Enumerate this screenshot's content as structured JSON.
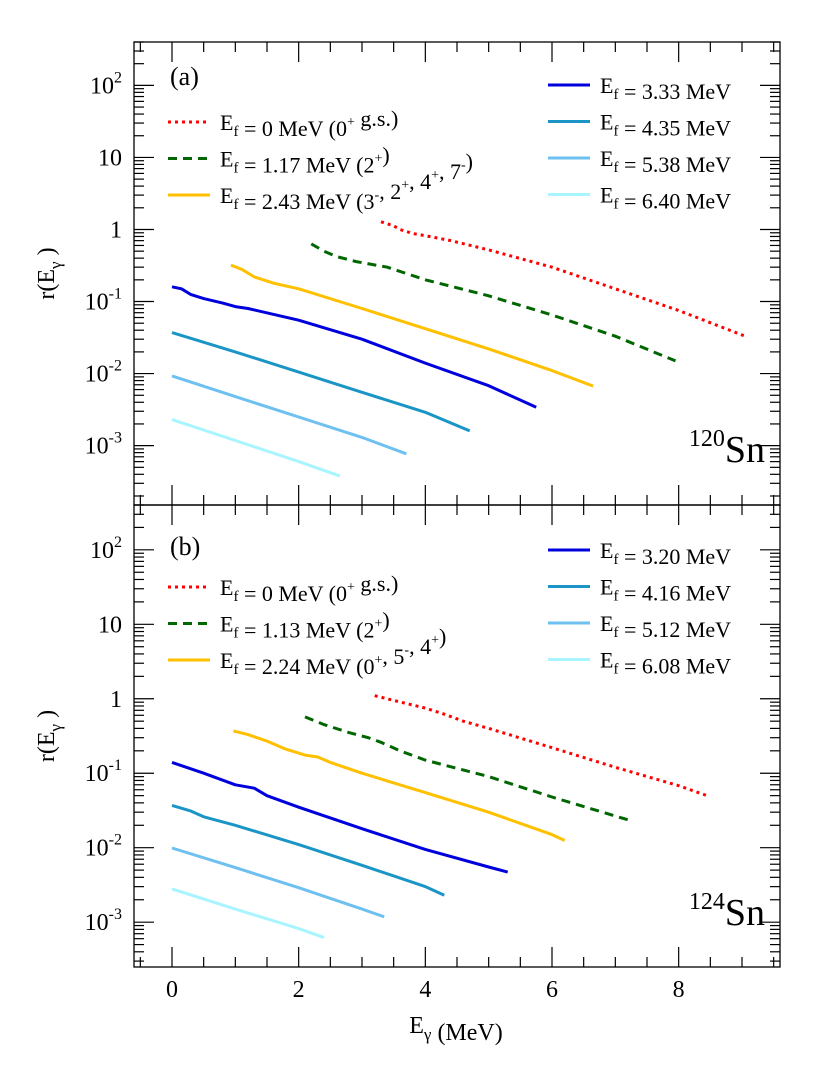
{
  "chart_data": [
    {
      "type": "line",
      "panel_label": "(a)",
      "nucleus": {
        "mass": "120",
        "symbol": "Sn"
      },
      "xlabel": "E_γ (MeV)",
      "ylabel": "r(E_γ)",
      "xlim": [
        -0.6,
        9.6
      ],
      "ylim": [
        0.00015,
        400
      ],
      "yscale": "log",
      "grid": false,
      "legend_left": "top-left",
      "legend_right": "top-right",
      "series": [
        {
          "label": "E_f = 0 MeV (0⁺ g.s.)",
          "color": "#ff0000",
          "dash": "dotted",
          "legend_side": "left",
          "x": [
            3.3,
            3.5,
            3.6,
            3.8,
            4.0,
            4.4,
            5.0,
            6.0,
            7.0,
            8.0,
            9.05
          ],
          "y": [
            1.28,
            1.12,
            1.0,
            0.88,
            0.82,
            0.7,
            0.52,
            0.3,
            0.15,
            0.075,
            0.033
          ]
        },
        {
          "label": "E_f = 1.17 MeV (2⁺)",
          "color": "#006600",
          "dash": "dashed",
          "legend_side": "left",
          "x": [
            2.2,
            2.4,
            2.6,
            2.9,
            3.4,
            4.0,
            5.0,
            6.0,
            7.0,
            7.95
          ],
          "y": [
            0.63,
            0.5,
            0.42,
            0.36,
            0.3,
            0.2,
            0.12,
            0.065,
            0.033,
            0.015
          ]
        },
        {
          "label": "E_f = 2.43 MeV (3⁻, 2⁺, 4⁺, 7⁻)",
          "color": "#ffc000",
          "dash": "solid",
          "legend_side": "left",
          "x": [
            0.93,
            1.1,
            1.3,
            1.6,
            2.0,
            3.0,
            4.0,
            5.0,
            6.0,
            6.65
          ],
          "y": [
            0.32,
            0.28,
            0.22,
            0.18,
            0.15,
            0.08,
            0.042,
            0.022,
            0.011,
            0.0067
          ]
        },
        {
          "label": "E_f = 3.33 MeV",
          "color": "#0000dd",
          "dash": "solid",
          "legend_side": "right",
          "x": [
            0.0,
            0.15,
            0.3,
            0.5,
            0.8,
            1.0,
            1.2,
            2.0,
            3.0,
            4.0,
            5.0,
            5.75
          ],
          "y": [
            0.16,
            0.15,
            0.125,
            0.11,
            0.095,
            0.085,
            0.08,
            0.055,
            0.03,
            0.014,
            0.0068,
            0.0034
          ]
        },
        {
          "label": "E_f = 4.35 MeV",
          "color": "#1a95c6",
          "dash": "solid",
          "legend_side": "right",
          "x": [
            0.0,
            1.0,
            2.0,
            3.0,
            4.0,
            4.7
          ],
          "y": [
            0.037,
            0.02,
            0.0105,
            0.0055,
            0.0029,
            0.0016
          ]
        },
        {
          "label": "E_f = 5.38 MeV",
          "color": "#6ec0f0",
          "dash": "solid",
          "legend_side": "right",
          "x": [
            0.0,
            1.0,
            2.0,
            3.0,
            3.7
          ],
          "y": [
            0.0093,
            0.0048,
            0.0025,
            0.0013,
            0.00077
          ]
        },
        {
          "label": "E_f = 6.40 MeV",
          "color": "#a8f4ff",
          "dash": "solid",
          "legend_side": "right",
          "x": [
            0.0,
            1.0,
            2.0,
            2.65
          ],
          "y": [
            0.0023,
            0.00118,
            0.0006,
            0.00038
          ]
        }
      ]
    },
    {
      "type": "line",
      "panel_label": "(b)",
      "nucleus": {
        "mass": "124",
        "symbol": "Sn"
      },
      "xlabel": "E_γ (MeV)",
      "ylabel": "r(E_γ)",
      "xlim": [
        -0.6,
        9.6
      ],
      "ylim": [
        0.00025,
        400
      ],
      "yscale": "log",
      "grid": false,
      "legend_left": "top-left",
      "legend_right": "top-right",
      "series": [
        {
          "label": "E_f = 0 MeV (0⁺ g.s.)",
          "color": "#ff0000",
          "dash": "dotted",
          "legend_side": "left",
          "x": [
            3.2,
            3.5,
            4.0,
            4.3,
            4.6,
            5.0,
            6.0,
            7.0,
            8.0,
            8.45
          ],
          "y": [
            1.1,
            0.95,
            0.75,
            0.62,
            0.5,
            0.4,
            0.22,
            0.12,
            0.068,
            0.05
          ]
        },
        {
          "label": "E_f = 1.13 MeV (2⁺)",
          "color": "#006600",
          "dash": "dashed",
          "legend_side": "left",
          "x": [
            2.1,
            2.4,
            2.8,
            3.1,
            3.3,
            3.6,
            4.0,
            5.0,
            6.0,
            7.25
          ],
          "y": [
            0.57,
            0.45,
            0.35,
            0.3,
            0.26,
            0.2,
            0.15,
            0.09,
            0.048,
            0.023
          ]
        },
        {
          "label": "E_f = 2.24 MeV (0⁺, 5⁻, 4⁺)",
          "color": "#ffc000",
          "dash": "solid",
          "legend_side": "left",
          "x": [
            0.97,
            1.2,
            1.5,
            1.8,
            2.1,
            2.3,
            2.5,
            3.0,
            4.0,
            5.0,
            6.0,
            6.2
          ],
          "y": [
            0.37,
            0.33,
            0.27,
            0.21,
            0.175,
            0.165,
            0.14,
            0.1,
            0.055,
            0.03,
            0.015,
            0.0125
          ]
        },
        {
          "label": "E_f = 3.20 MeV",
          "color": "#0000dd",
          "dash": "solid",
          "legend_side": "right",
          "x": [
            0.0,
            0.5,
            1.0,
            1.3,
            1.5,
            2.0,
            3.0,
            4.0,
            5.0,
            5.3
          ],
          "y": [
            0.14,
            0.1,
            0.07,
            0.063,
            0.05,
            0.035,
            0.018,
            0.0095,
            0.0055,
            0.0047
          ]
        },
        {
          "label": "E_f = 4.16 MeV",
          "color": "#1a95c6",
          "dash": "solid",
          "legend_side": "right",
          "x": [
            0.0,
            0.3,
            0.5,
            1.0,
            2.0,
            3.0,
            4.0,
            4.3
          ],
          "y": [
            0.037,
            0.031,
            0.026,
            0.02,
            0.011,
            0.0058,
            0.003,
            0.0023
          ]
        },
        {
          "label": "E_f = 5.12 MeV",
          "color": "#6ec0f0",
          "dash": "solid",
          "legend_side": "right",
          "x": [
            0.0,
            1.0,
            2.0,
            3.0,
            3.35
          ],
          "y": [
            0.0099,
            0.0054,
            0.0029,
            0.0015,
            0.00118
          ]
        },
        {
          "label": "E_f = 6.08 MeV",
          "color": "#a8f4ff",
          "dash": "solid",
          "legend_side": "right",
          "x": [
            0.0,
            1.0,
            2.0,
            2.4
          ],
          "y": [
            0.0028,
            0.0015,
            0.00082,
            0.00062
          ]
        }
      ]
    }
  ],
  "x_tick_labels": [
    "0",
    "2",
    "4",
    "6",
    "8"
  ],
  "x_ticks": [
    0,
    2,
    4,
    6,
    8
  ],
  "y_tick_labels": [
    {
      "value": 100,
      "base": "10",
      "exp": "2"
    },
    {
      "value": 10,
      "base": "10",
      "exp": ""
    },
    {
      "value": 1,
      "base": "1",
      "exp": ""
    },
    {
      "value": 0.1,
      "base": "10",
      "exp": "-1"
    },
    {
      "value": 0.01,
      "base": "10",
      "exp": "-2"
    },
    {
      "value": 0.001,
      "base": "10",
      "exp": "-3"
    }
  ]
}
